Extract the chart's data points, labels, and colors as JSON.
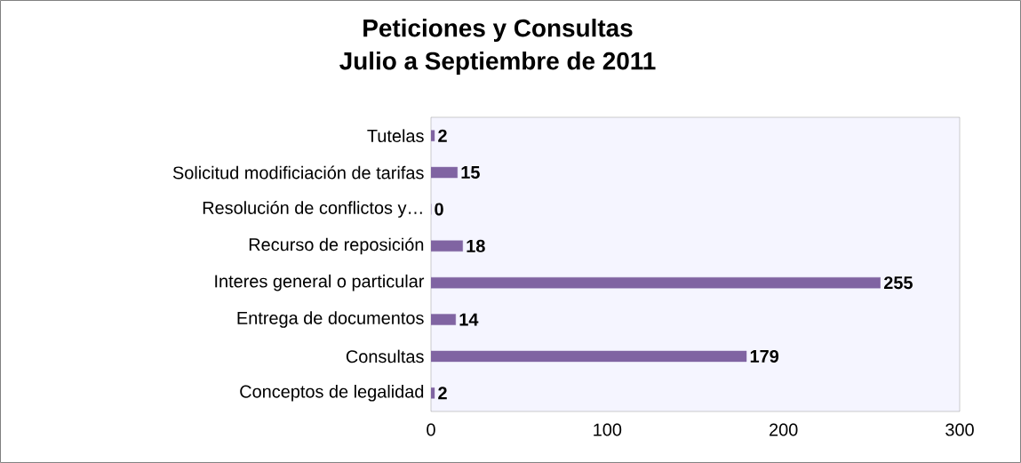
{
  "chart_data": {
    "type": "bar",
    "orientation": "horizontal",
    "title": "Peticiones y Consultas",
    "subtitle": "Julio a Septiembre de 2011",
    "categories": [
      "Tutelas",
      "Solicitud modificiación de tarifas",
      "Resolución de conflictos y…",
      "Recurso de reposición",
      "Interes general o particular",
      "Entrega de documentos",
      "Consultas",
      "Conceptos de legalidad"
    ],
    "values": [
      2,
      15,
      0,
      18,
      255,
      14,
      179,
      2
    ],
    "color": "#8064a2",
    "xlim": [
      0,
      300
    ],
    "xticks": [
      0,
      100,
      200,
      300
    ],
    "data_labels": true
  }
}
